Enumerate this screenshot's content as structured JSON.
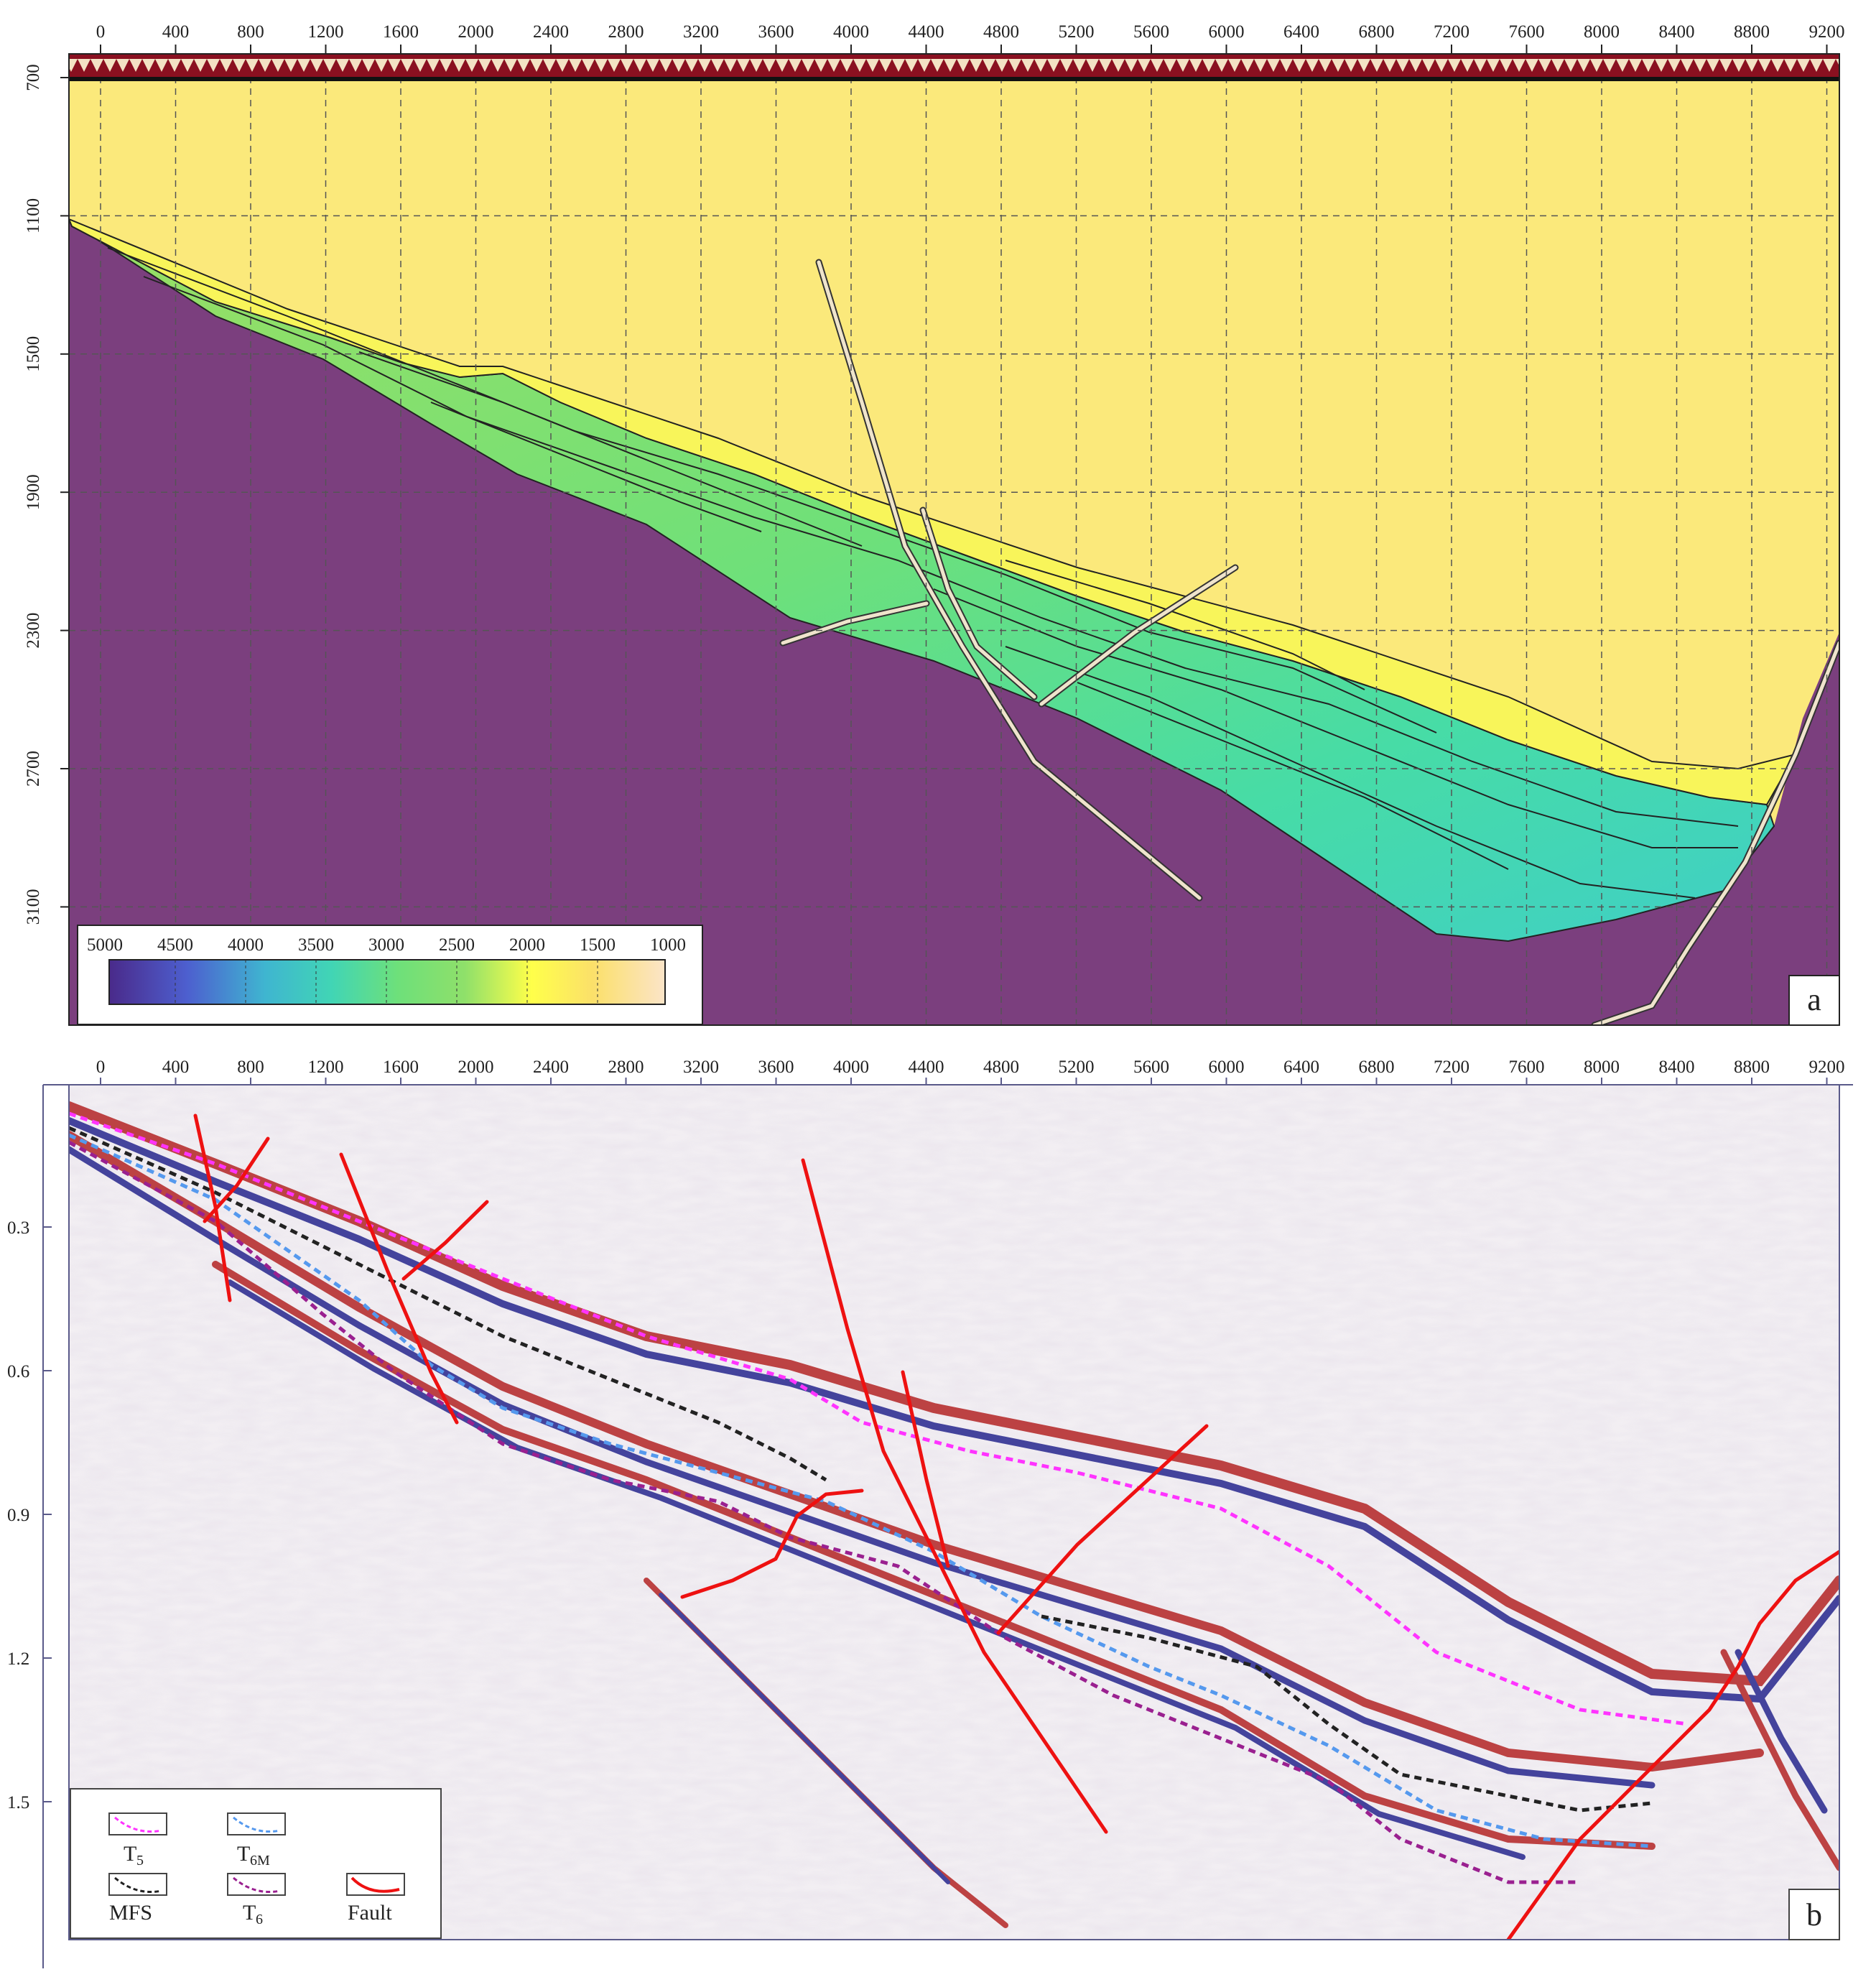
{
  "panel_a": {
    "letter": "a",
    "x_ticks": [
      "0",
      "400",
      "800",
      "1200",
      "1600",
      "2000",
      "2400",
      "2800",
      "3200",
      "3600",
      "4000",
      "4400",
      "4800",
      "5200",
      "5600",
      "6000",
      "6400",
      "6800",
      "7200",
      "7600",
      "8000",
      "8400",
      "8800",
      "9200"
    ],
    "y_ticks": [
      "700",
      "1100",
      "1500",
      "1900",
      "2300",
      "2700",
      "3100"
    ],
    "colorbar": {
      "labels": [
        "5000",
        "4500",
        "4000",
        "3500",
        "3000",
        "2500",
        "2000",
        "1500",
        "1000"
      ],
      "colors": [
        "#4a2a8a",
        "#4d5fcf",
        "#3fb5d0",
        "#41d5b5",
        "#6ee07a",
        "#8fe06a",
        "#ffff4a",
        "#fbe06a",
        "#fbe4c8"
      ]
    },
    "colors": {
      "basement": "#7b3f7e",
      "overburden": "#fbe97b",
      "sand_yellow": "#f8f55a",
      "fault": "#efe4cc"
    }
  },
  "panel_b": {
    "letter": "b",
    "x_ticks": [
      "0",
      "400",
      "800",
      "1200",
      "1600",
      "2000",
      "2400",
      "2800",
      "3200",
      "3600",
      "4000",
      "4400",
      "4800",
      "5200",
      "5600",
      "6000",
      "6400",
      "6800",
      "7200",
      "7600",
      "8000",
      "8400",
      "8800",
      "9200"
    ],
    "y_ticks": [
      "0.3",
      "0.6",
      "0.9",
      "1.2",
      "1.5"
    ],
    "legend": {
      "t5": "T",
      "t5_sub": "5",
      "t6m": "T",
      "t6m_sub": "6M",
      "mfs": "MFS",
      "t6": "T",
      "t6_sub": "6",
      "fault": "Fault"
    },
    "colors": {
      "t5": "#ff33ff",
      "t6m": "#5599ee",
      "mfs": "#222222",
      "t6": "#9a2090",
      "fault": "#ee1111",
      "pos": "#b01818",
      "neg": "#1a1a88"
    }
  }
}
